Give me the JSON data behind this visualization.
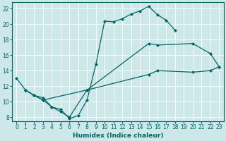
{
  "xlabel": "Humidex (Indice chaleur)",
  "background_color": "#cce8e8",
  "grid_color": "#b0d8d8",
  "line_color": "#006666",
  "xlim": [
    -0.5,
    23.5
  ],
  "ylim": [
    7.5,
    22.8
  ],
  "xticks": [
    0,
    1,
    2,
    3,
    4,
    5,
    6,
    7,
    8,
    9,
    10,
    11,
    12,
    13,
    14,
    15,
    16,
    17,
    18,
    19,
    20,
    21,
    22,
    23
  ],
  "yticks": [
    8,
    10,
    12,
    14,
    16,
    18,
    20,
    22
  ],
  "line1": {
    "x": [
      0,
      1,
      2,
      3,
      4,
      5,
      6,
      7,
      8,
      9,
      10,
      11,
      12,
      13,
      14,
      15,
      16,
      17,
      18
    ],
    "y": [
      13.0,
      11.5,
      10.8,
      10.5,
      9.3,
      9.0,
      7.8,
      8.2,
      10.2,
      14.8,
      20.4,
      20.3,
      20.7,
      21.3,
      21.7,
      22.3,
      21.2,
      20.5,
      19.2
    ]
  },
  "line2": {
    "x": [
      1,
      2,
      3,
      4,
      5,
      6,
      8,
      15,
      16,
      20,
      22,
      23
    ],
    "y": [
      11.5,
      10.8,
      10.2,
      9.3,
      8.7,
      8.0,
      11.5,
      17.5,
      17.3,
      17.5,
      16.2,
      14.5
    ]
  },
  "line3": {
    "x": [
      1,
      2,
      3,
      8,
      15,
      16,
      20,
      22,
      23
    ],
    "y": [
      11.5,
      10.8,
      10.2,
      11.5,
      13.5,
      14.0,
      13.8,
      14.0,
      14.5
    ]
  },
  "marker_size": 2.5,
  "line_width": 0.9,
  "tick_fontsize": 5.5,
  "xlabel_fontsize": 6.5
}
